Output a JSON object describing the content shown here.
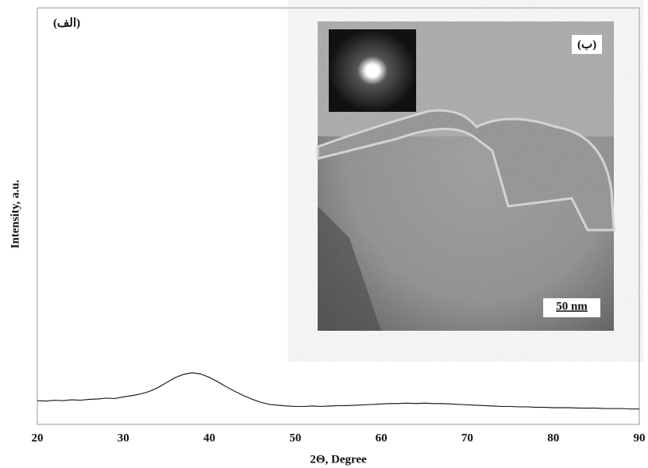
{
  "chart_data": {
    "type": "line",
    "xlabel": "2Θ, Degree",
    "ylabel": "Intensity, a.u.",
    "annotations": {
      "panel_a": "(الف)",
      "panel_b": "(ب)",
      "scale_bar": "50 nm"
    },
    "xlim": [
      20,
      90
    ],
    "xticks": [
      20,
      30,
      40,
      50,
      60,
      70,
      80,
      90
    ],
    "ylim": [
      0,
      100
    ],
    "grid": false,
    "series": [
      {
        "color": "#222222",
        "x": [
          20,
          21,
          22,
          23,
          24,
          25,
          26,
          27,
          28,
          29,
          30,
          31,
          32,
          33,
          34,
          35,
          36,
          37,
          38,
          39,
          40,
          41,
          42,
          43,
          44,
          45,
          46,
          47,
          48,
          49,
          50,
          51,
          52,
          53,
          54,
          55,
          56,
          57,
          58,
          59,
          60,
          61,
          62,
          63,
          64,
          65,
          66,
          67,
          68,
          69,
          70,
          71,
          72,
          73,
          74,
          75,
          76,
          77,
          78,
          79,
          80,
          81,
          82,
          83,
          84,
          85,
          86,
          87,
          88,
          89,
          90
        ],
        "values": [
          5.7,
          5.6,
          5.8,
          5.7,
          5.9,
          5.8,
          6.0,
          6.1,
          6.3,
          6.2,
          6.6,
          6.9,
          7.3,
          7.9,
          8.8,
          10.0,
          11.2,
          12.0,
          12.4,
          12.1,
          11.3,
          10.2,
          9.0,
          7.9,
          6.9,
          6.0,
          5.3,
          4.8,
          4.6,
          4.4,
          4.3,
          4.3,
          4.4,
          4.3,
          4.4,
          4.5,
          4.5,
          4.6,
          4.7,
          4.8,
          4.9,
          5.0,
          5.0,
          5.1,
          5.0,
          5.1,
          5.0,
          5.0,
          4.9,
          4.8,
          4.7,
          4.6,
          4.5,
          4.4,
          4.3,
          4.3,
          4.2,
          4.2,
          4.1,
          4.1,
          4.0,
          4.0,
          4.0,
          3.9,
          3.9,
          3.9,
          3.8,
          3.8,
          3.8,
          3.7,
          3.7
        ]
      }
    ]
  }
}
